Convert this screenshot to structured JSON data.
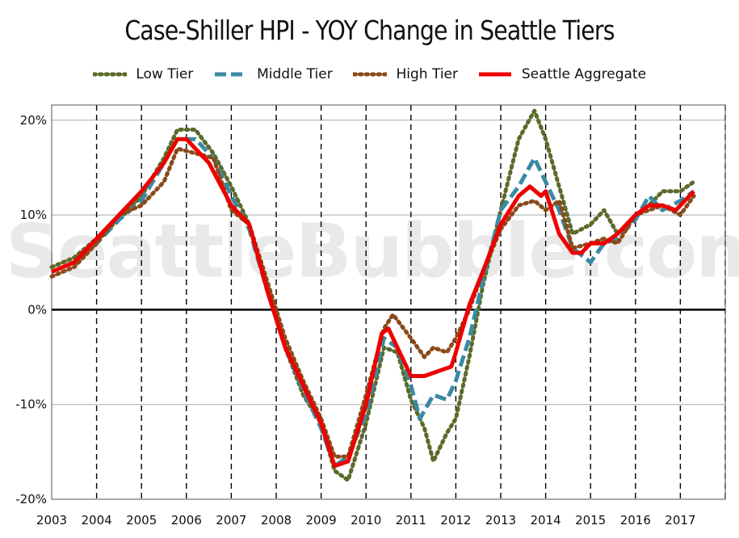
{
  "chart_data": {
    "type": "line",
    "title": "Case-Shiller HPI - YOY Change in Seattle Tiers",
    "xlabel": "",
    "ylabel": "",
    "xlim": [
      2003,
      2018
    ],
    "ylim": [
      -20,
      20
    ],
    "y_ticks": [
      20,
      10,
      0,
      -10,
      -20
    ],
    "y_tick_labels": [
      "20%",
      "10%",
      "0%",
      "-10%",
      "-20%"
    ],
    "x_ticks": [
      2003,
      2004,
      2005,
      2006,
      2007,
      2008,
      2009,
      2010,
      2011,
      2012,
      2013,
      2014,
      2015,
      2016,
      2017
    ],
    "x_tick_labels": [
      "2003",
      "2004",
      "2005",
      "2006",
      "2007",
      "2008",
      "2009",
      "2010",
      "2011",
      "2012",
      "2013",
      "2014",
      "2015",
      "2016",
      "2017"
    ],
    "grid": "horizontal gridlines, dashed vertical year lines",
    "legend_position": "top",
    "watermark": "SeattleBubble.com",
    "series": [
      {
        "name": "Low Tier",
        "style": "dotted",
        "color": "#5a6b2a",
        "x": [
          2003.0,
          2003.5,
          2004.0,
          2004.5,
          2005.0,
          2005.5,
          2005.8,
          2006.2,
          2006.6,
          2007.0,
          2007.4,
          2007.8,
          2008.2,
          2008.6,
          2009.0,
          2009.3,
          2009.6,
          2010.0,
          2010.4,
          2010.7,
          2011.0,
          2011.3,
          2011.5,
          2011.8,
          2012.0,
          2012.3,
          2012.6,
          2013.0,
          2013.4,
          2013.75,
          2014.0,
          2014.3,
          2014.6,
          2015.0,
          2015.3,
          2015.6,
          2016.0,
          2016.3,
          2016.6,
          2017.0,
          2017.3
        ],
        "y": [
          4.5,
          5.5,
          7.5,
          9.5,
          12.0,
          16.0,
          19.0,
          19.0,
          16.5,
          13.0,
          9.0,
          2.5,
          -4.0,
          -9.0,
          -12.0,
          -17.0,
          -18.0,
          -12.0,
          -4.0,
          -4.5,
          -9.5,
          -12.5,
          -16.0,
          -13.0,
          -11.5,
          -5.0,
          2.5,
          10.5,
          18.0,
          21.0,
          18.0,
          13.0,
          8.0,
          9.0,
          10.5,
          8.0,
          10.0,
          11.0,
          12.5,
          12.5,
          13.5
        ]
      },
      {
        "name": "Middle Tier",
        "style": "dashed",
        "color": "#3a8aa3",
        "x": [
          2003.0,
          2003.5,
          2004.0,
          2004.5,
          2005.0,
          2005.5,
          2005.8,
          2006.2,
          2006.6,
          2007.0,
          2007.4,
          2007.8,
          2008.2,
          2008.6,
          2009.0,
          2009.3,
          2009.6,
          2010.0,
          2010.4,
          2010.7,
          2011.0,
          2011.2,
          2011.5,
          2011.8,
          2012.0,
          2012.3,
          2012.6,
          2013.0,
          2013.4,
          2013.75,
          2014.0,
          2014.3,
          2014.6,
          2015.0,
          2015.3,
          2015.6,
          2016.0,
          2016.3,
          2016.6,
          2017.0,
          2017.3
        ],
        "y": [
          4.0,
          5.0,
          7.0,
          9.5,
          11.5,
          15.5,
          18.0,
          18.0,
          16.0,
          12.0,
          8.5,
          2.0,
          -4.0,
          -8.5,
          -12.5,
          -16.5,
          -15.5,
          -11.0,
          -3.0,
          -4.0,
          -8.0,
          -11.5,
          -9.0,
          -9.5,
          -7.5,
          -3.0,
          3.0,
          10.5,
          13.0,
          16.0,
          13.5,
          10.5,
          6.5,
          5.0,
          7.0,
          7.5,
          9.5,
          12.0,
          10.5,
          11.5,
          12.5
        ]
      },
      {
        "name": "High Tier",
        "style": "dotted",
        "color": "#8b4a1a",
        "x": [
          2003.0,
          2003.5,
          2004.0,
          2004.5,
          2005.0,
          2005.5,
          2005.8,
          2006.2,
          2006.6,
          2007.0,
          2007.4,
          2007.8,
          2008.2,
          2008.6,
          2009.0,
          2009.3,
          2009.6,
          2010.0,
          2010.4,
          2010.6,
          2011.0,
          2011.3,
          2011.5,
          2011.8,
          2012.0,
          2012.3,
          2012.6,
          2013.0,
          2013.4,
          2013.75,
          2014.0,
          2014.3,
          2014.6,
          2015.0,
          2015.3,
          2015.6,
          2016.0,
          2016.3,
          2016.6,
          2017.0,
          2017.3
        ],
        "y": [
          3.5,
          4.5,
          7.0,
          10.0,
          11.0,
          13.5,
          17.0,
          16.5,
          16.0,
          10.5,
          9.0,
          3.0,
          -3.0,
          -7.5,
          -11.5,
          -15.5,
          -15.5,
          -9.0,
          -2.0,
          -0.5,
          -3.0,
          -5.0,
          -4.0,
          -4.5,
          -3.0,
          0.0,
          4.0,
          8.5,
          11.0,
          11.5,
          10.5,
          11.5,
          6.5,
          7.0,
          7.5,
          7.0,
          10.0,
          10.5,
          11.0,
          10.0,
          12.0
        ]
      },
      {
        "name": "Seattle Aggregate",
        "style": "solid",
        "color": "#ee0000",
        "x": [
          2003.0,
          2003.5,
          2004.0,
          2004.5,
          2005.0,
          2005.5,
          2005.8,
          2006.0,
          2006.2,
          2006.5,
          2007.0,
          2007.4,
          2007.8,
          2008.2,
          2008.6,
          2009.0,
          2009.3,
          2009.6,
          2010.0,
          2010.35,
          2010.5,
          2010.7,
          2011.0,
          2011.3,
          2011.6,
          2011.9,
          2012.0,
          2012.3,
          2012.6,
          2013.0,
          2013.4,
          2013.65,
          2013.9,
          2014.0,
          2014.3,
          2014.6,
          2014.8,
          2015.0,
          2015.3,
          2015.6,
          2016.0,
          2016.3,
          2016.6,
          2016.9,
          2017.0,
          2017.3
        ],
        "y": [
          4.0,
          5.0,
          7.5,
          10.0,
          12.5,
          15.5,
          18.0,
          18.0,
          17.0,
          15.5,
          11.0,
          9.0,
          2.0,
          -4.0,
          -8.0,
          -12.0,
          -16.5,
          -16.0,
          -10.0,
          -2.5,
          -2.0,
          -4.0,
          -7.0,
          -7.0,
          -6.5,
          -6.0,
          -4.5,
          0.5,
          4.0,
          9.0,
          12.0,
          13.0,
          12.0,
          12.5,
          8.0,
          6.0,
          6.0,
          7.0,
          7.0,
          8.0,
          10.0,
          11.0,
          11.0,
          10.5,
          11.0,
          12.5
        ]
      }
    ]
  }
}
